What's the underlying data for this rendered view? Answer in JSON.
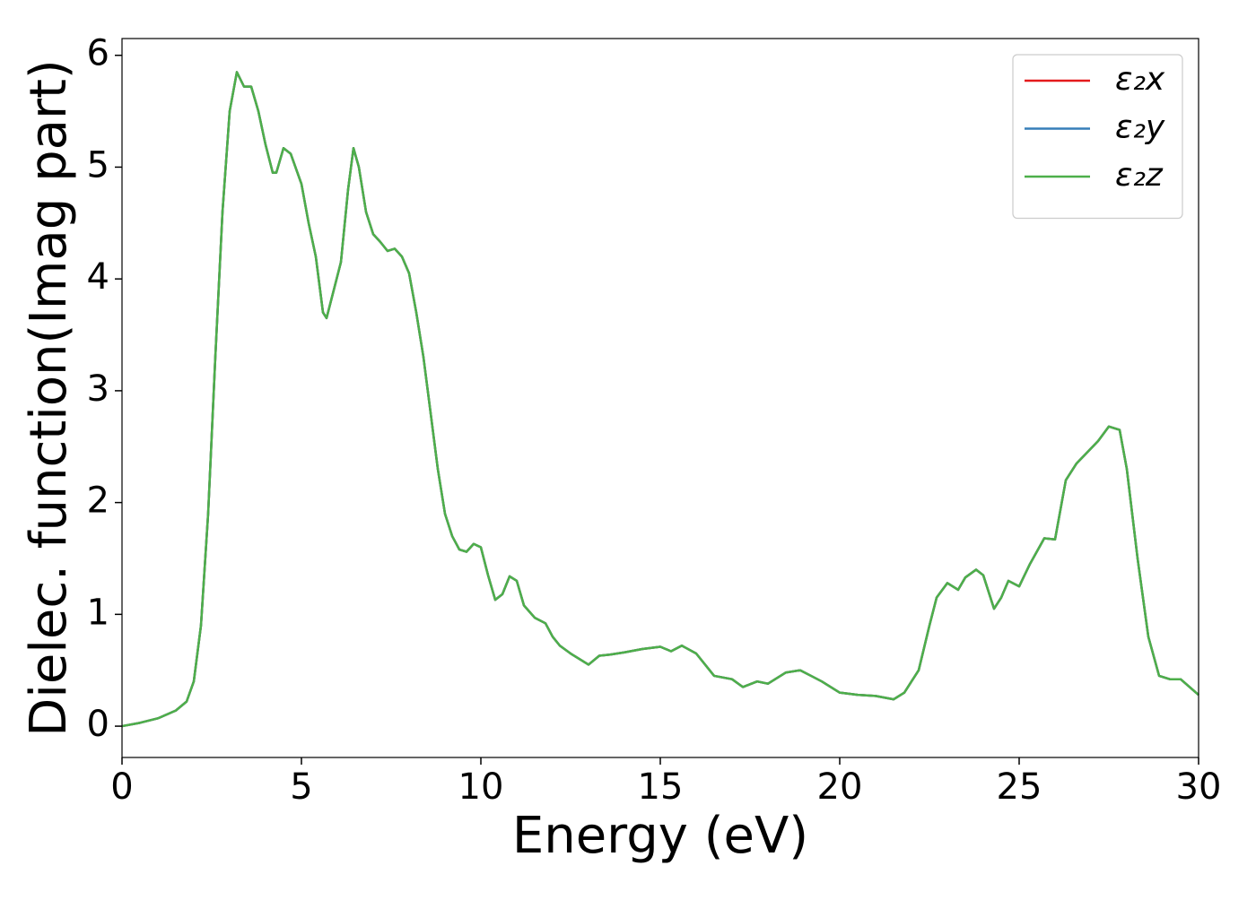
{
  "chart_data": {
    "type": "line",
    "xlabel": "Energy (eV)",
    "ylabel": "Dielec. function(Imag part)",
    "x": [
      0,
      0.5,
      1,
      1.5,
      1.8,
      2,
      2.2,
      2.4,
      2.6,
      2.8,
      3.0,
      3.2,
      3.4,
      3.6,
      3.8,
      4.0,
      4.2,
      4.3,
      4.5,
      4.7,
      5.0,
      5.2,
      5.4,
      5.6,
      5.7,
      5.9,
      6.1,
      6.3,
      6.45,
      6.6,
      6.8,
      7.0,
      7.2,
      7.4,
      7.6,
      7.8,
      8.0,
      8.2,
      8.4,
      8.6,
      8.8,
      9.0,
      9.2,
      9.4,
      9.6,
      9.8,
      10.0,
      10.2,
      10.4,
      10.6,
      10.8,
      11.0,
      11.2,
      11.5,
      11.8,
      12.0,
      12.2,
      12.5,
      13.0,
      13.3,
      13.6,
      14.0,
      14.5,
      15.0,
      15.3,
      15.6,
      16.0,
      16.5,
      17.0,
      17.3,
      17.7,
      18.0,
      18.5,
      18.9,
      19.2,
      19.5,
      20.0,
      20.5,
      21.0,
      21.5,
      21.8,
      22.2,
      22.5,
      22.7,
      23.0,
      23.3,
      23.5,
      23.8,
      24.0,
      24.3,
      24.5,
      24.7,
      25.0,
      25.3,
      25.7,
      26.0,
      26.3,
      26.6,
      26.9,
      27.2,
      27.5,
      27.8,
      28.0,
      28.3,
      28.6,
      28.9,
      29.2,
      29.5,
      30
    ],
    "series": [
      {
        "name": "ε₂x",
        "color": "#e41a1c",
        "values": [
          0,
          0.03,
          0.07,
          0.14,
          0.22,
          0.4,
          0.9,
          1.9,
          3.3,
          4.6,
          5.5,
          5.85,
          5.72,
          5.72,
          5.5,
          5.2,
          4.95,
          4.95,
          5.17,
          5.12,
          4.85,
          4.5,
          4.2,
          3.7,
          3.65,
          3.9,
          4.15,
          4.8,
          5.17,
          5.0,
          4.6,
          4.4,
          4.33,
          4.25,
          4.27,
          4.2,
          4.05,
          3.7,
          3.3,
          2.8,
          2.3,
          1.9,
          1.7,
          1.58,
          1.56,
          1.63,
          1.6,
          1.35,
          1.13,
          1.18,
          1.34,
          1.3,
          1.08,
          0.97,
          0.92,
          0.8,
          0.72,
          0.65,
          0.55,
          0.63,
          0.64,
          0.66,
          0.69,
          0.71,
          0.67,
          0.72,
          0.65,
          0.45,
          0.42,
          0.35,
          0.4,
          0.38,
          0.48,
          0.5,
          0.45,
          0.4,
          0.3,
          0.28,
          0.27,
          0.24,
          0.3,
          0.5,
          0.9,
          1.15,
          1.28,
          1.22,
          1.33,
          1.4,
          1.35,
          1.05,
          1.15,
          1.3,
          1.25,
          1.45,
          1.68,
          1.67,
          2.2,
          2.35,
          2.45,
          2.55,
          2.68,
          2.65,
          2.3,
          1.5,
          0.8,
          0.45,
          0.42,
          0.42,
          0.28
        ]
      },
      {
        "name": "ε₂y",
        "color": "#377eb8",
        "values": [
          0,
          0.03,
          0.07,
          0.14,
          0.22,
          0.4,
          0.9,
          1.9,
          3.3,
          4.6,
          5.5,
          5.85,
          5.72,
          5.72,
          5.5,
          5.2,
          4.95,
          4.95,
          5.17,
          5.12,
          4.85,
          4.5,
          4.2,
          3.7,
          3.65,
          3.9,
          4.15,
          4.8,
          5.17,
          5.0,
          4.6,
          4.4,
          4.33,
          4.25,
          4.27,
          4.2,
          4.05,
          3.7,
          3.3,
          2.8,
          2.3,
          1.9,
          1.7,
          1.58,
          1.56,
          1.63,
          1.6,
          1.35,
          1.13,
          1.18,
          1.34,
          1.3,
          1.08,
          0.97,
          0.92,
          0.8,
          0.72,
          0.65,
          0.55,
          0.63,
          0.64,
          0.66,
          0.69,
          0.71,
          0.67,
          0.72,
          0.65,
          0.45,
          0.42,
          0.35,
          0.4,
          0.38,
          0.48,
          0.5,
          0.45,
          0.4,
          0.3,
          0.28,
          0.27,
          0.24,
          0.3,
          0.5,
          0.9,
          1.15,
          1.28,
          1.22,
          1.33,
          1.4,
          1.35,
          1.05,
          1.15,
          1.3,
          1.25,
          1.45,
          1.68,
          1.67,
          2.2,
          2.35,
          2.45,
          2.55,
          2.68,
          2.65,
          2.3,
          1.5,
          0.8,
          0.45,
          0.42,
          0.42,
          0.28
        ]
      },
      {
        "name": "ε₂z",
        "color": "#4daf4a",
        "values": [
          0,
          0.03,
          0.07,
          0.14,
          0.22,
          0.4,
          0.9,
          1.9,
          3.3,
          4.6,
          5.5,
          5.85,
          5.72,
          5.72,
          5.5,
          5.2,
          4.95,
          4.95,
          5.17,
          5.12,
          4.85,
          4.5,
          4.2,
          3.7,
          3.65,
          3.9,
          4.15,
          4.8,
          5.17,
          5.0,
          4.6,
          4.4,
          4.33,
          4.25,
          4.27,
          4.2,
          4.05,
          3.7,
          3.3,
          2.8,
          2.3,
          1.9,
          1.7,
          1.58,
          1.56,
          1.63,
          1.6,
          1.35,
          1.13,
          1.18,
          1.34,
          1.3,
          1.08,
          0.97,
          0.92,
          0.8,
          0.72,
          0.65,
          0.55,
          0.63,
          0.64,
          0.66,
          0.69,
          0.71,
          0.67,
          0.72,
          0.65,
          0.45,
          0.42,
          0.35,
          0.4,
          0.38,
          0.48,
          0.5,
          0.45,
          0.4,
          0.3,
          0.28,
          0.27,
          0.24,
          0.3,
          0.5,
          0.9,
          1.15,
          1.28,
          1.22,
          1.33,
          1.4,
          1.35,
          1.05,
          1.15,
          1.3,
          1.25,
          1.45,
          1.68,
          1.67,
          2.2,
          2.35,
          2.45,
          2.55,
          2.68,
          2.65,
          2.3,
          1.5,
          0.8,
          0.45,
          0.42,
          0.42,
          0.28
        ]
      }
    ],
    "xlim": [
      0,
      30
    ],
    "xticks": [
      0,
      5,
      10,
      15,
      20,
      25,
      30
    ],
    "ylim": [
      -0.28,
      6.15
    ],
    "yticks": [
      0,
      1,
      2,
      3,
      4,
      5,
      6
    ],
    "legend": "upper right",
    "grid": false
  }
}
